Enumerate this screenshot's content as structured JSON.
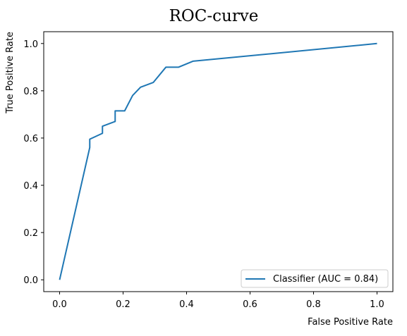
{
  "chart_data": {
    "type": "line",
    "title": "ROC-curve",
    "xlabel": "False Positive Rate",
    "ylabel": "True Positive Rate",
    "xlim": [
      -0.05,
      1.05
    ],
    "ylim": [
      -0.05,
      1.05
    ],
    "xticks": [
      0.0,
      0.2,
      0.4,
      0.6,
      0.8,
      1.0
    ],
    "yticks": [
      0.0,
      0.2,
      0.4,
      0.6,
      0.8,
      1.0
    ],
    "xtick_labels": [
      "0.0",
      "0.2",
      "0.4",
      "0.6",
      "0.8",
      "1.0"
    ],
    "ytick_labels": [
      "0.0",
      "0.2",
      "0.4",
      "0.6",
      "0.8",
      "1.0"
    ],
    "grid": false,
    "legend_position": "lower-right",
    "series": [
      {
        "name": "Classifier (AUC = 0.84)",
        "color": "#1f77b4",
        "x": [
          0.0,
          0.095,
          0.095,
          0.135,
          0.135,
          0.175,
          0.175,
          0.205,
          0.23,
          0.255,
          0.295,
          0.335,
          0.375,
          0.42,
          1.0
        ],
        "y": [
          0.0,
          0.56,
          0.595,
          0.62,
          0.65,
          0.67,
          0.715,
          0.715,
          0.78,
          0.815,
          0.835,
          0.9,
          0.9,
          0.925,
          1.0
        ]
      }
    ]
  }
}
